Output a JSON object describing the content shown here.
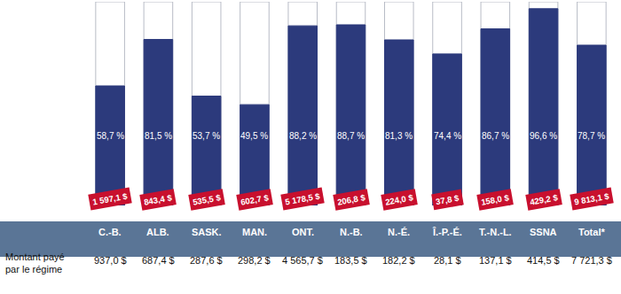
{
  "chart_data": {
    "type": "bar",
    "categories": [
      "C.-B.",
      "ALB.",
      "SASK.",
      "MAN.",
      "ONT.",
      "N.-B.",
      "N.-É.",
      "Î.-P.-É.",
      "T.-N.-L.",
      "SSNA",
      "Total*"
    ],
    "values": [
      58.7,
      81.5,
      53.7,
      49.5,
      88.2,
      88.7,
      81.3,
      74.4,
      86.7,
      96.6,
      78.7
    ],
    "value_labels": [
      "58,7 %",
      "81,5 %",
      "53,7 %",
      "49,5 %",
      "88,2 %",
      "88,7 %",
      "81,3 %",
      "74,4 %",
      "86,7 %",
      "96,6 %",
      "78,7 %"
    ],
    "color": "#2c3a7c",
    "ylim": [
      0,
      100
    ],
    "data_labels": true,
    "tick_labels": false,
    "grid": false,
    "cost_labels": [
      "1 597,1 $",
      "843,4 $",
      "535,5 $",
      "602,7 $",
      "5 178,5 $",
      "206,8 $",
      "224,0 $",
      "37,8 $",
      "158,0 $",
      "429,2 $",
      "9 813,1 $"
    ],
    "row_label": [
      "Montant payé",
      "par le régime"
    ],
    "row_labels": [
      "937,0 $",
      "687,4 $",
      "287,6 $",
      "298,2 $",
      "4 565,7 $",
      "183,5 $",
      "182,2 $",
      "28,1 $",
      "137,1 $",
      "414,5 $",
      "7 721,3 $"
    ]
  }
}
